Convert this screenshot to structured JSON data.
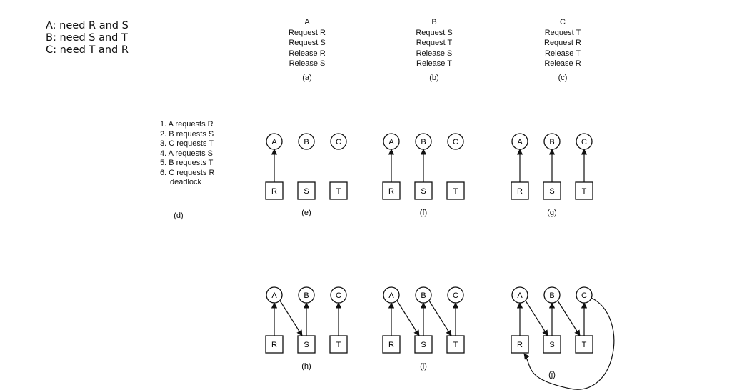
{
  "needs": [
    "A: need R and S",
    "B: need S and T",
    "C: need T and R"
  ],
  "processes": [
    {
      "name": "A",
      "ops": [
        "Request R",
        "Request S",
        "Release R",
        "Release S"
      ],
      "caption": "(a)"
    },
    {
      "name": "B",
      "ops": [
        "Request S",
        "Request T",
        "Release S",
        "Release T"
      ],
      "caption": "(b)"
    },
    {
      "name": "C",
      "ops": [
        "Request T",
        "Request R",
        "Release T",
        "Release R"
      ],
      "caption": "(c)"
    }
  ],
  "sequence": {
    "steps": [
      "1. A requests R",
      "2. B requests S",
      "3. C requests T",
      "4. A requests S",
      "5. B requests T",
      "6. C requests R",
      "deadlock"
    ],
    "caption": "(d)"
  },
  "graph_labels": {
    "process_nodes": [
      "A",
      "B",
      "C"
    ],
    "resource_nodes": [
      "R",
      "S",
      "T"
    ]
  },
  "graphs": [
    {
      "caption": "(e)",
      "held": [
        [
          "R",
          "A"
        ]
      ],
      "requests": []
    },
    {
      "caption": "(f)",
      "held": [
        [
          "R",
          "A"
        ],
        [
          "S",
          "B"
        ]
      ],
      "requests": []
    },
    {
      "caption": "(g)",
      "held": [
        [
          "R",
          "A"
        ],
        [
          "S",
          "B"
        ],
        [
          "T",
          "C"
        ]
      ],
      "requests": []
    },
    {
      "caption": "(h)",
      "held": [
        [
          "R",
          "A"
        ],
        [
          "S",
          "B"
        ],
        [
          "T",
          "C"
        ]
      ],
      "requests": [
        [
          "A",
          "S"
        ]
      ]
    },
    {
      "caption": "(i)",
      "held": [
        [
          "R",
          "A"
        ],
        [
          "S",
          "B"
        ],
        [
          "T",
          "C"
        ]
      ],
      "requests": [
        [
          "A",
          "S"
        ],
        [
          "B",
          "T"
        ]
      ]
    },
    {
      "caption": "(j)",
      "held": [
        [
          "R",
          "A"
        ],
        [
          "S",
          "B"
        ],
        [
          "T",
          "C"
        ]
      ],
      "requests": [
        [
          "A",
          "S"
        ],
        [
          "B",
          "T"
        ],
        [
          "C",
          "R"
        ]
      ]
    }
  ]
}
